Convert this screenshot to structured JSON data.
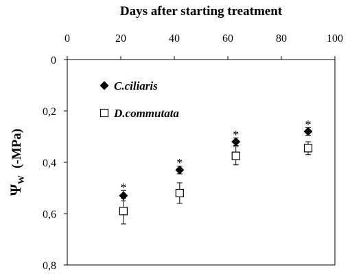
{
  "chart_data": {
    "type": "scatter",
    "title": "",
    "xlabel": "Days after starting treatment",
    "ylabel": "Ψ",
    "ylabel_sub": "W",
    "ylabel_unit": "(-MPa)",
    "xlim": [
      0,
      100
    ],
    "ylim": [
      0,
      0.8
    ],
    "y_inverted": true,
    "x_axis_position": "top",
    "xticks": [
      0,
      20,
      40,
      60,
      80,
      100
    ],
    "xtick_labels": [
      "0",
      "20",
      "40",
      "60",
      "80",
      "100"
    ],
    "yticks": [
      0,
      0.2,
      0.4,
      0.6,
      0.8
    ],
    "ytick_labels": [
      "0",
      "0,2",
      "0,4",
      "0,6",
      "0,8"
    ],
    "grid": false,
    "legend_position": "top-left",
    "series": [
      {
        "name": "C.ciliaris",
        "marker": "filled-diamond",
        "color": "#000000",
        "x": [
          21,
          42,
          63,
          90
        ],
        "y": [
          0.53,
          0.43,
          0.32,
          0.28
        ],
        "err": [
          0.02,
          0.015,
          0.015,
          0.015
        ]
      },
      {
        "name": "D.commutata",
        "marker": "open-square",
        "color": "#000000",
        "x": [
          21,
          42,
          63,
          90
        ],
        "y": [
          0.59,
          0.52,
          0.375,
          0.345
        ],
        "err": [
          0.05,
          0.04,
          0.035,
          0.025
        ]
      }
    ],
    "annotations": [
      {
        "text": "*",
        "x": 21,
        "y": 0.49
      },
      {
        "text": "*",
        "x": 42,
        "y": 0.395
      },
      {
        "text": "*",
        "x": 63,
        "y": 0.285
      },
      {
        "text": "*",
        "x": 90,
        "y": 0.245
      }
    ]
  }
}
